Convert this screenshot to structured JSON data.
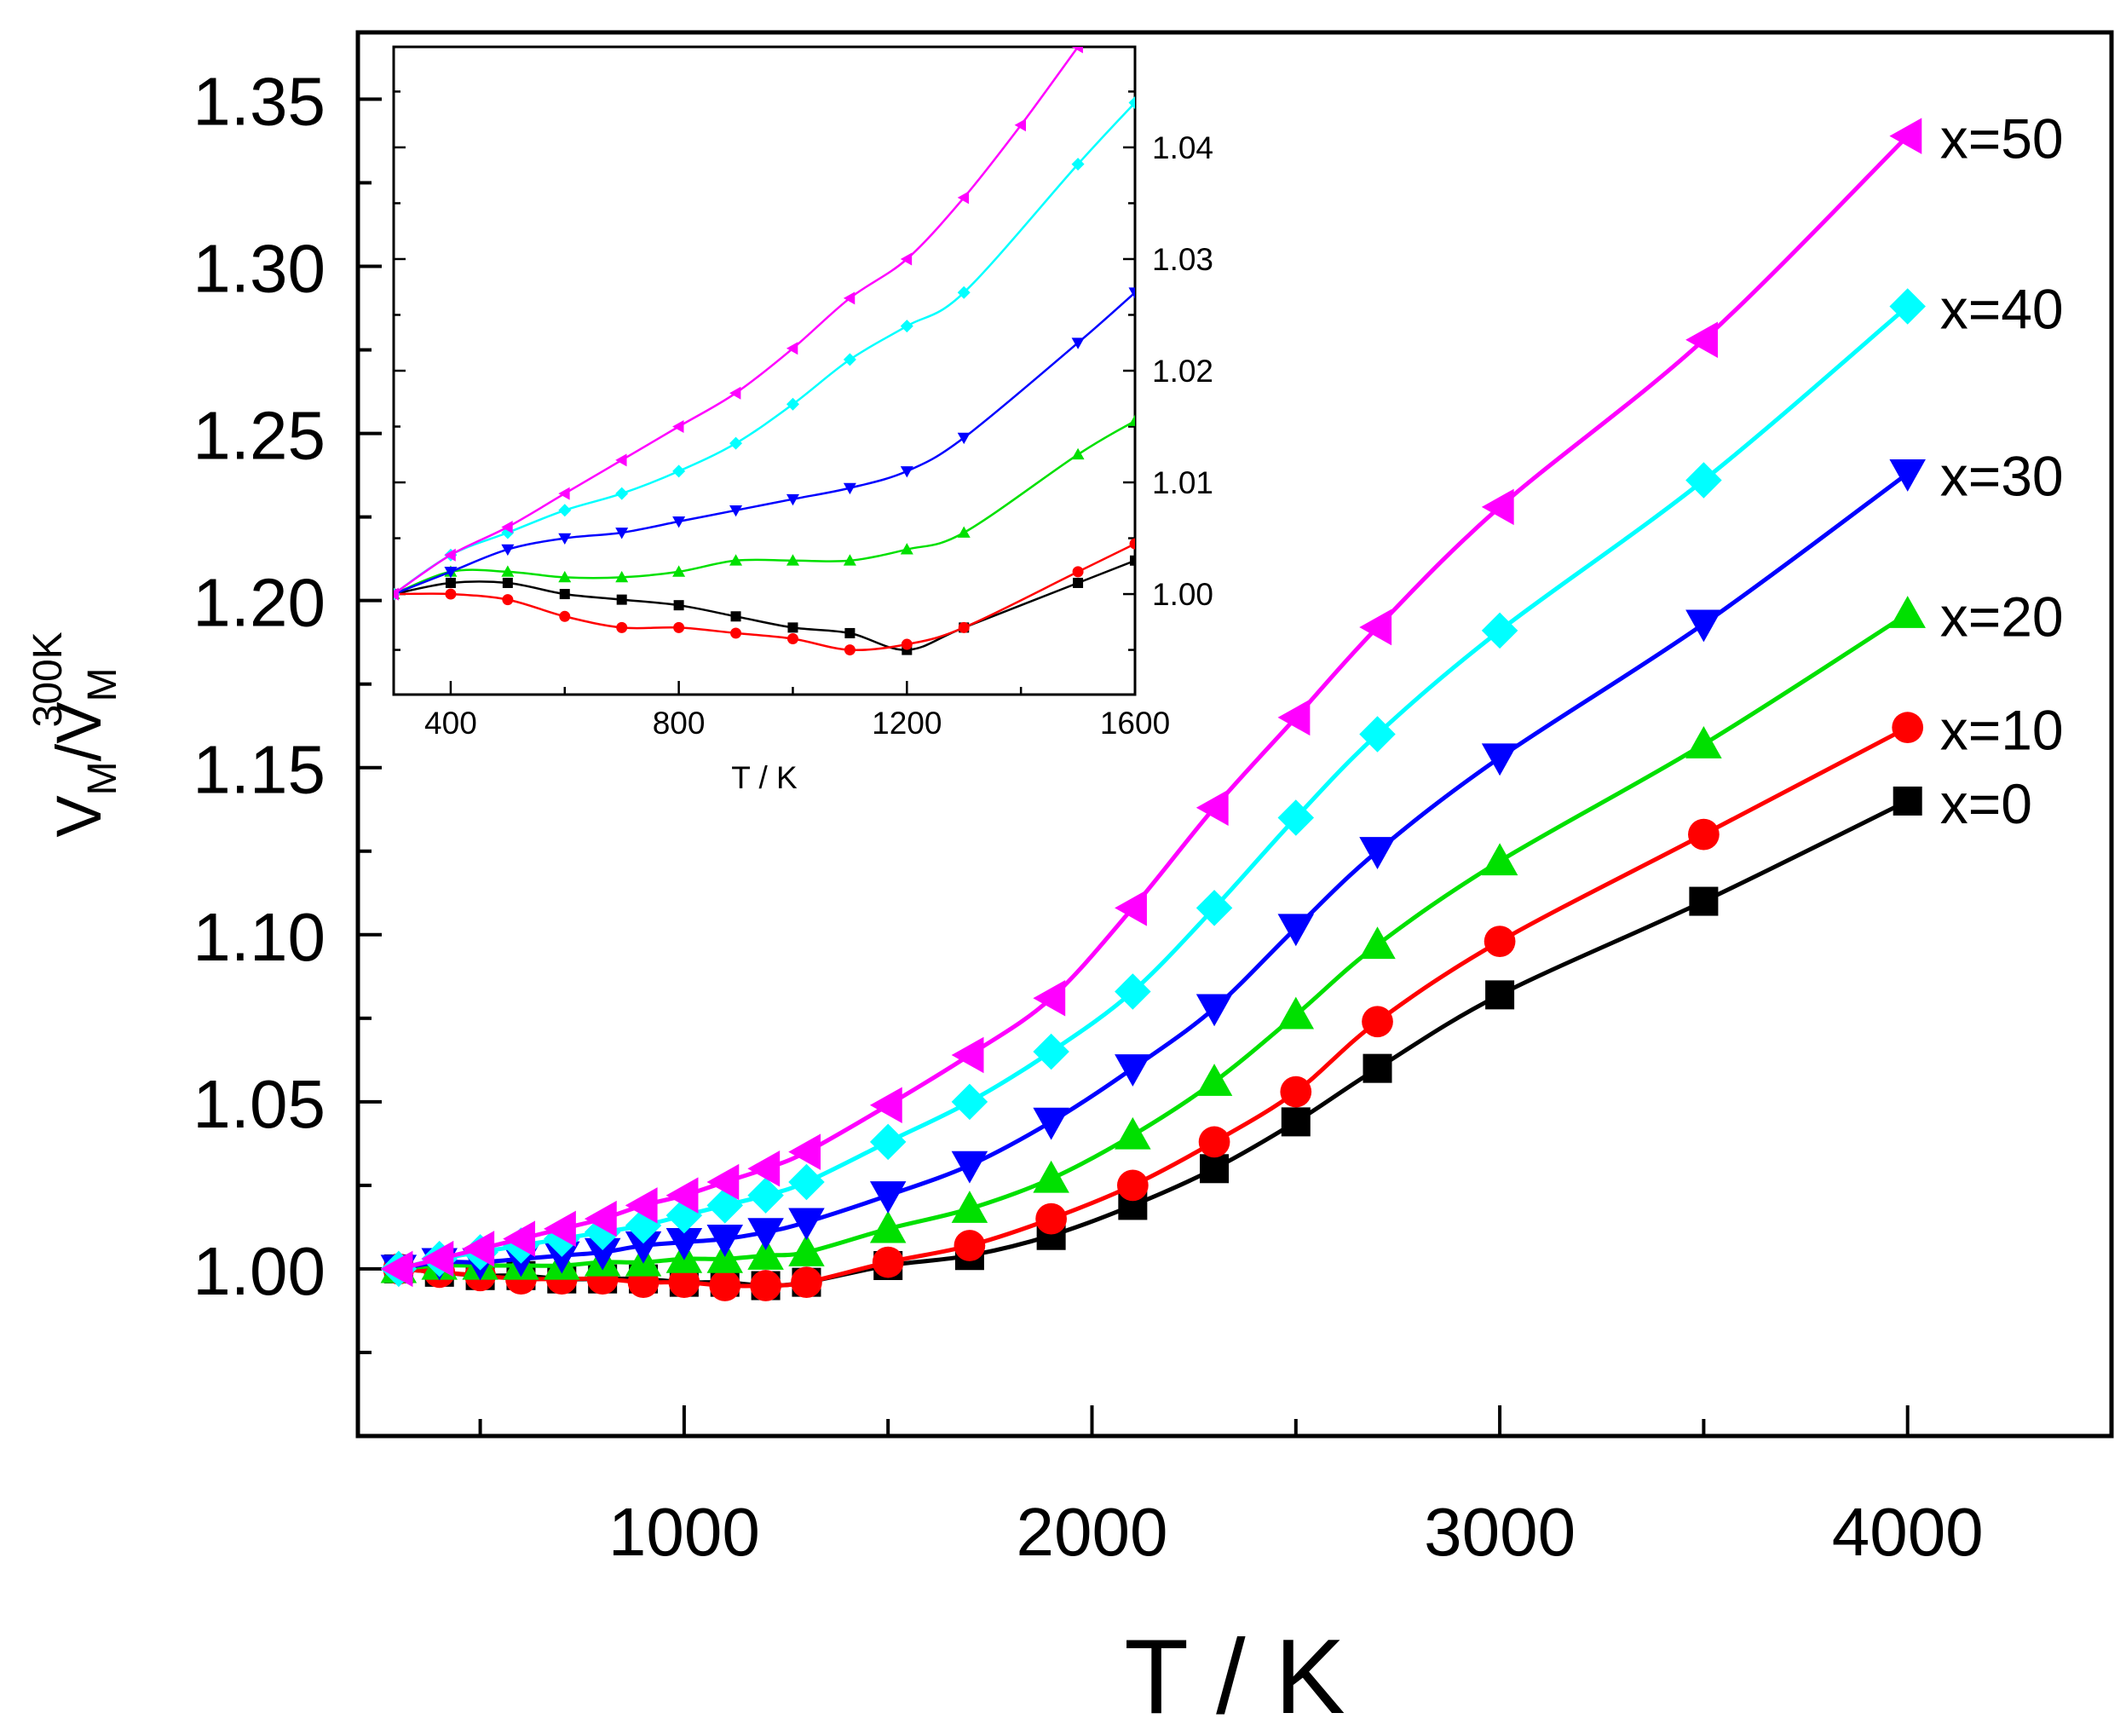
{
  "chart_data": [
    {
      "id": "main",
      "type": "line",
      "xlabel": "T / K",
      "ylabel": {
        "base": "V",
        "sub": "M",
        "sep": "/",
        "base2": "V",
        "sub2": "M",
        "sup2": "300K"
      },
      "xlim": [
        200,
        4500
      ],
      "ylim": [
        0.95,
        1.37
      ],
      "xticks": [
        1000,
        2000,
        3000,
        4000
      ],
      "xtick_labels": [
        "1000",
        "2000",
        "3000",
        "4000"
      ],
      "xminor": [
        500,
        1500,
        2500,
        3500
      ],
      "yticks": [
        1.0,
        1.05,
        1.1,
        1.15,
        1.2,
        1.25,
        1.3,
        1.35
      ],
      "ytick_labels": [
        "1.00",
        "1.05",
        "1.10",
        "1.15",
        "1.20",
        "1.25",
        "1.30",
        "1.35"
      ],
      "grid": false,
      "series": [
        {
          "name": "x=0",
          "label": "x=0",
          "color": "#000000",
          "marker": "square",
          "x": [
            300,
            400,
            500,
            600,
            700,
            800,
            900,
            1000,
            1100,
            1200,
            1300,
            1500,
            1700,
            1900,
            2100,
            2300,
            2500,
            2700,
            3000,
            3500,
            4000
          ],
          "y": [
            1.0,
            0.999,
            0.998,
            0.998,
            0.997,
            0.997,
            0.997,
            0.996,
            0.996,
            0.995,
            0.996,
            1.001,
            1.004,
            1.01,
            1.019,
            1.03,
            1.044,
            1.06,
            1.082,
            1.11,
            1.14
          ]
        },
        {
          "name": "x=10",
          "label": "x=10",
          "color": "#ff0000",
          "marker": "circle",
          "x": [
            300,
            400,
            500,
            600,
            700,
            800,
            900,
            1000,
            1100,
            1200,
            1300,
            1500,
            1700,
            1900,
            2100,
            2300,
            2500,
            2700,
            3000,
            3500,
            4000
          ],
          "y": [
            1.0,
            0.999,
            0.998,
            0.997,
            0.997,
            0.997,
            0.996,
            0.996,
            0.995,
            0.995,
            0.996,
            1.002,
            1.007,
            1.015,
            1.025,
            1.038,
            1.053,
            1.074,
            1.098,
            1.13,
            1.162
          ]
        },
        {
          "name": "x=20",
          "label": "x=20",
          "color": "#00e000",
          "marker": "triangle-up",
          "x": [
            300,
            400,
            500,
            600,
            700,
            800,
            900,
            1000,
            1100,
            1200,
            1300,
            1500,
            1700,
            1900,
            2100,
            2300,
            2500,
            2700,
            3000,
            3500,
            4000
          ],
          "y": [
            1.0,
            1.001,
            1.001,
            1.001,
            1.001,
            1.002,
            1.002,
            1.003,
            1.003,
            1.004,
            1.005,
            1.012,
            1.018,
            1.027,
            1.04,
            1.056,
            1.076,
            1.097,
            1.122,
            1.157,
            1.196
          ]
        },
        {
          "name": "x=30",
          "label": "x=30",
          "color": "#0000ff",
          "marker": "triangle-down",
          "x": [
            300,
            400,
            500,
            600,
            700,
            800,
            900,
            1000,
            1100,
            1200,
            1300,
            1500,
            1700,
            1900,
            2100,
            2300,
            2500,
            2700,
            3000,
            3500,
            4000
          ],
          "y": [
            1.0,
            1.002,
            1.002,
            1.003,
            1.004,
            1.005,
            1.007,
            1.008,
            1.009,
            1.011,
            1.014,
            1.022,
            1.031,
            1.044,
            1.06,
            1.078,
            1.102,
            1.125,
            1.153,
            1.193,
            1.238
          ]
        },
        {
          "name": "x=40",
          "label": "x=40",
          "color": "#00ffff",
          "marker": "diamond",
          "x": [
            300,
            400,
            500,
            600,
            700,
            800,
            900,
            1000,
            1100,
            1200,
            1300,
            1500,
            1700,
            1900,
            2100,
            2300,
            2500,
            2700,
            3000,
            3500,
            4000
          ],
          "y": [
            1.0,
            1.003,
            1.005,
            1.007,
            1.009,
            1.011,
            1.013,
            1.016,
            1.019,
            1.022,
            1.026,
            1.038,
            1.05,
            1.065,
            1.083,
            1.108,
            1.135,
            1.16,
            1.191,
            1.236,
            1.288
          ]
        },
        {
          "name": "x=50",
          "label": "x=50",
          "color": "#ff00ff",
          "marker": "triangle-left",
          "x": [
            300,
            400,
            500,
            600,
            700,
            800,
            900,
            1000,
            1100,
            1200,
            1300,
            1500,
            1700,
            1900,
            2100,
            2300,
            2500,
            2700,
            3000,
            3500,
            4000
          ],
          "y": [
            1.0,
            1.003,
            1.006,
            1.009,
            1.012,
            1.015,
            1.019,
            1.022,
            1.026,
            1.03,
            1.035,
            1.049,
            1.064,
            1.081,
            1.108,
            1.138,
            1.165,
            1.192,
            1.228,
            1.278,
            1.339
          ]
        }
      ]
    },
    {
      "id": "inset",
      "type": "line",
      "xlabel": "T / K",
      "ylabel": "",
      "xlim": [
        300,
        1600
      ],
      "ylim": [
        0.991,
        1.049
      ],
      "xticks": [
        400,
        800,
        1200,
        1600
      ],
      "xtick_labels": [
        "400",
        "800",
        "1200",
        "1600"
      ],
      "xminor": [
        600,
        1000,
        1400
      ],
      "yticks": [
        1.0,
        1.01,
        1.02,
        1.03,
        1.04
      ],
      "ytick_labels": [
        "1.00",
        "1.01",
        "1.02",
        "1.03",
        "1.04"
      ],
      "grid": false,
      "series": [
        {
          "name": "x=0",
          "color": "#000000",
          "marker": "square",
          "x": [
            300,
            400,
            500,
            600,
            700,
            800,
            900,
            1000,
            1100,
            1200,
            1300,
            1500,
            1600
          ],
          "y": [
            1.0,
            1.001,
            1.001,
            1.0,
            0.9995,
            0.999,
            0.998,
            0.997,
            0.9965,
            0.995,
            0.997,
            1.001,
            1.003
          ]
        },
        {
          "name": "x=10",
          "color": "#ff0000",
          "marker": "circle",
          "x": [
            300,
            400,
            500,
            600,
            700,
            800,
            900,
            1000,
            1100,
            1200,
            1300,
            1500,
            1600
          ],
          "y": [
            1.0,
            1.0,
            0.9995,
            0.998,
            0.997,
            0.997,
            0.9965,
            0.996,
            0.995,
            0.9955,
            0.997,
            1.002,
            1.0045
          ]
        },
        {
          "name": "x=20",
          "color": "#00e000",
          "marker": "triangle-up",
          "x": [
            300,
            400,
            500,
            600,
            700,
            800,
            900,
            1000,
            1100,
            1200,
            1300,
            1500,
            1600
          ],
          "y": [
            1.0,
            1.002,
            1.002,
            1.0015,
            1.0015,
            1.002,
            1.003,
            1.003,
            1.003,
            1.004,
            1.0055,
            1.0125,
            1.0155
          ]
        },
        {
          "name": "x=30",
          "color": "#0000ff",
          "marker": "triangle-down",
          "x": [
            300,
            400,
            500,
            600,
            700,
            800,
            900,
            1000,
            1100,
            1200,
            1300,
            1500,
            1600
          ],
          "y": [
            1.0,
            1.002,
            1.004,
            1.005,
            1.0055,
            1.0065,
            1.0075,
            1.0085,
            1.0095,
            1.011,
            1.014,
            1.0225,
            1.027
          ]
        },
        {
          "name": "x=40",
          "color": "#00ffff",
          "marker": "diamond",
          "x": [
            300,
            400,
            500,
            600,
            700,
            800,
            900,
            1000,
            1100,
            1200,
            1300,
            1500,
            1600
          ],
          "y": [
            1.0,
            1.0035,
            1.0055,
            1.0075,
            1.009,
            1.011,
            1.0135,
            1.017,
            1.021,
            1.024,
            1.027,
            1.0385,
            1.044
          ]
        },
        {
          "name": "x=50",
          "color": "#ff00ff",
          "marker": "triangle-left",
          "x": [
            300,
            400,
            500,
            600,
            700,
            800,
            900,
            1000,
            1100,
            1200,
            1300,
            1400,
            1500
          ],
          "y": [
            1.0,
            1.0035,
            1.006,
            1.009,
            1.012,
            1.015,
            1.018,
            1.022,
            1.0265,
            1.03,
            1.0355,
            1.042,
            1.049
          ]
        }
      ]
    }
  ]
}
